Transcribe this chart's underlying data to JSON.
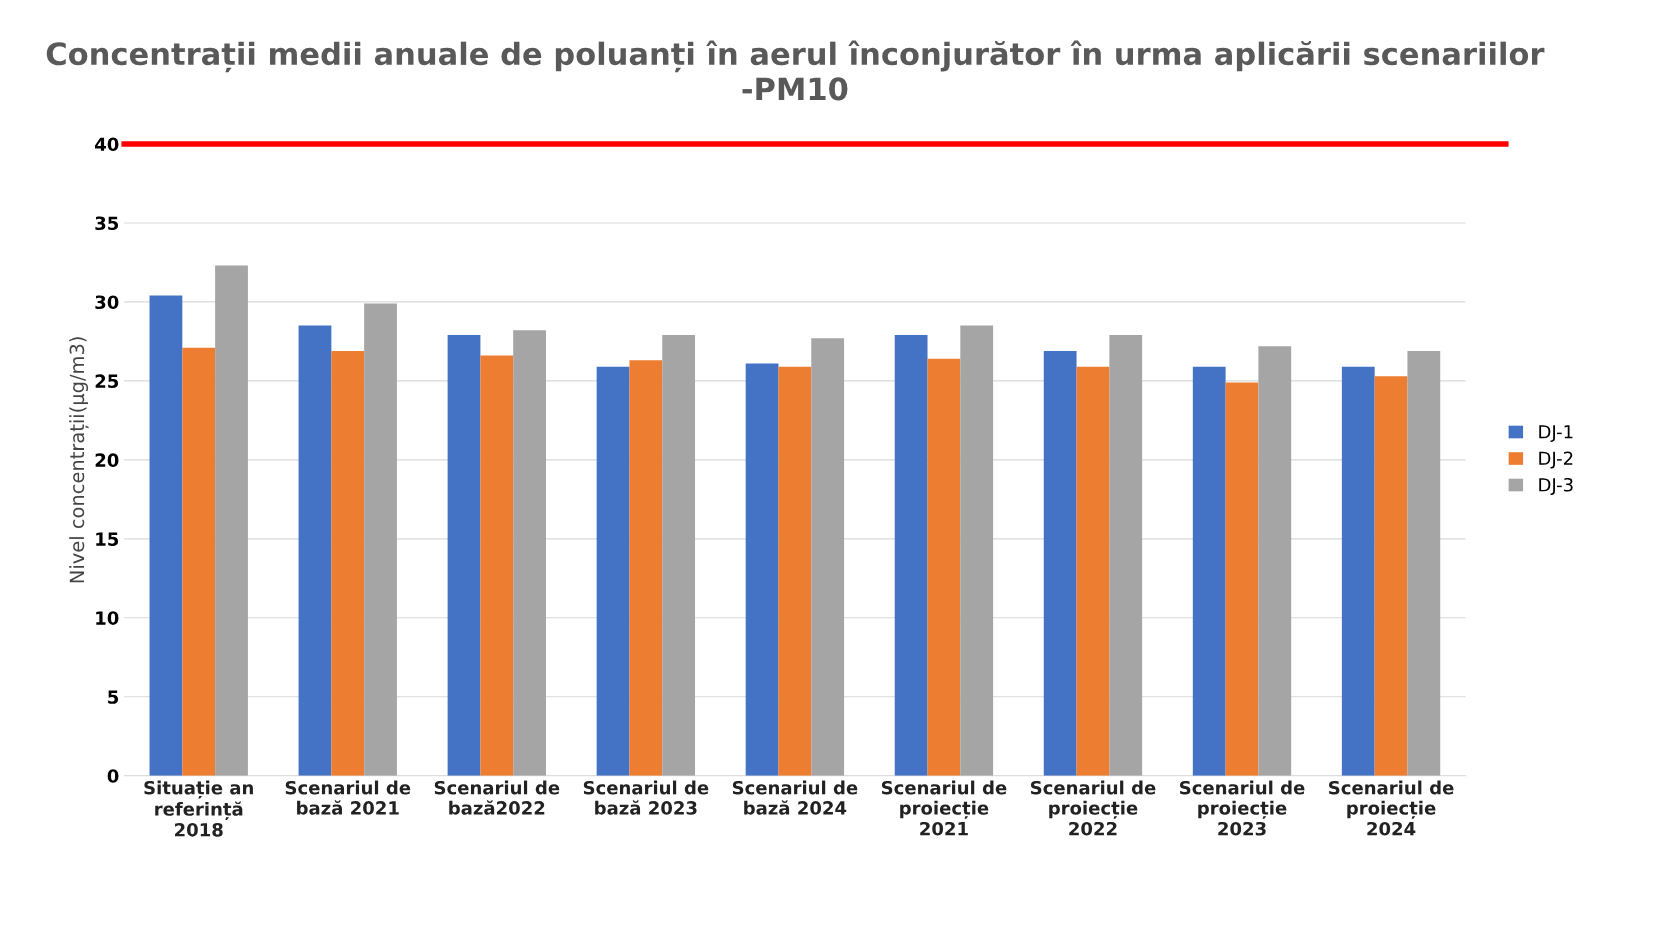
{
  "chart_data": {
    "type": "bar",
    "title": "Concentrații medii anuale de poluanți în aerul înconjurător în urma aplicării scenariilor -PM10",
    "ylabel": "Nivel concentrații(µg/m3)",
    "categories": [
      "Situație an\nreferință\n2018",
      "Scenariul de\nbază 2021",
      "Scenariul de\nbază2022",
      "Scenariul de\nbază 2023",
      "Scenariul de\nbază 2024",
      "Scenariul de\nproiecție\n2021",
      "Scenariul de\nproiecție\n2022",
      "Scenariul de\nproiecție\n2023",
      "Scenariul de\nproiecție\n2024"
    ],
    "series": [
      {
        "name": "DJ-1",
        "color": "#4472c4",
        "values": [
          30.4,
          28.5,
          27.9,
          25.9,
          26.1,
          27.9,
          26.9,
          25.9,
          25.9
        ]
      },
      {
        "name": "DJ-2",
        "color": "#ed7d31",
        "values": [
          27.1,
          26.9,
          26.6,
          26.3,
          25.9,
          26.4,
          25.9,
          24.9,
          25.3
        ]
      },
      {
        "name": "DJ-3",
        "color": "#a5a5a5",
        "values": [
          32.3,
          29.9,
          28.2,
          27.9,
          27.7,
          28.5,
          27.9,
          27.2,
          26.9
        ]
      }
    ],
    "ylim": [
      0,
      40
    ],
    "yticks": [
      0,
      5,
      10,
      15,
      20,
      25,
      30,
      35,
      40
    ],
    "ref_lines": [
      {
        "axis": "y",
        "value": 40,
        "label": null,
        "color": "#ff0000"
      }
    ],
    "grid": "y",
    "legend": "right"
  }
}
